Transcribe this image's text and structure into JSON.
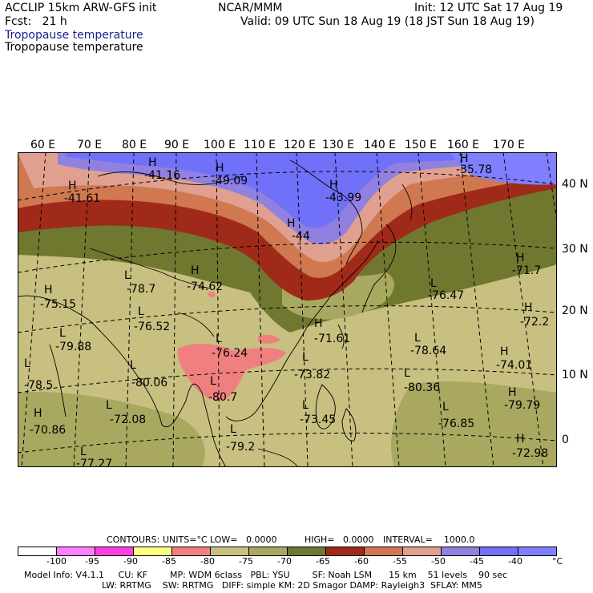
{
  "header": {
    "model": "ACCLIP 15km ARW-GFS init",
    "forecast": "Fcst:   21 h",
    "source": "NCAR/MMM",
    "init": "Init: 12 UTC Sat 17 Aug 19",
    "valid": "Valid: 09 UTC Sun 18 Aug 19 (18 JST Sun 18 Aug 19)",
    "field_title_1": "Tropopause temperature",
    "field_title_2": "Tropopause temperature"
  },
  "map": {
    "longitude_labels": [
      "60 E",
      "70 E",
      "80 E",
      "90 E",
      "100 E",
      "110 E",
      "120 E",
      "130 E",
      "140 E",
      "150 E",
      "160 E",
      "170 E"
    ],
    "latitude_labels": [
      "40 N",
      "30 N",
      "20 N",
      "10 N",
      "0"
    ],
    "markers": [
      {
        "type": "H",
        "value": "-41.61"
      },
      {
        "type": "H",
        "value": "-41.16"
      },
      {
        "type": "H",
        "value": "-49.09"
      },
      {
        "type": "H",
        "value": "-43.99"
      },
      {
        "type": "H",
        "value": "-44"
      },
      {
        "type": "H",
        "value": "-35.78"
      },
      {
        "type": "L",
        "value": "-78.7"
      },
      {
        "type": "H",
        "value": "-74.62"
      },
      {
        "type": "H",
        "value": "-75.15"
      },
      {
        "type": "L",
        "value": "-76.52"
      },
      {
        "type": "L",
        "value": "-79.88"
      },
      {
        "type": "L",
        "value": "-76.24"
      },
      {
        "type": "L",
        "value": "-80.06"
      },
      {
        "type": "L",
        "value": "-80.7"
      },
      {
        "type": "H",
        "value": "-71.61"
      },
      {
        "type": "L",
        "value": "-73.82"
      },
      {
        "type": "L",
        "value": "-76.47"
      },
      {
        "type": "L",
        "value": "-78.64"
      },
      {
        "type": "L",
        "value": "-80.36"
      },
      {
        "type": "H",
        "value": "-71.7"
      },
      {
        "type": "H",
        "value": "-72.2"
      },
      {
        "type": "H",
        "value": "-74.01"
      },
      {
        "type": "H",
        "value": "-79.79"
      },
      {
        "type": "L",
        "value": "-76.85"
      },
      {
        "type": "H",
        "value": "-72.98"
      },
      {
        "type": "L",
        "value": "-78.5"
      },
      {
        "type": "H",
        "value": "-70.86"
      },
      {
        "type": "L",
        "value": "-72.08"
      },
      {
        "type": "L",
        "value": "-79.2"
      },
      {
        "type": "L",
        "value": "-73.45"
      },
      {
        "type": "L",
        "value": "-77.27"
      }
    ]
  },
  "contours": {
    "label": "CONTOURS:",
    "units": "UNITS=°C",
    "low": "LOW=   0.0000",
    "high": "HIGH=   0.0000",
    "interval": "INTERVAL=    1000.0"
  },
  "colorbar": {
    "unit": "°C",
    "ticks": [
      "-100",
      "-95",
      "-90",
      "-85",
      "-80",
      "-75",
      "-70",
      "-65",
      "-60",
      "-55",
      "-50",
      "-45",
      "-40"
    ],
    "colors": [
      "#ffffff",
      "#ff80ff",
      "#ff40e0",
      "#ffff80",
      "#f08080",
      "#c8c080",
      "#a8a860",
      "#707830",
      "#a02a1a",
      "#d07850",
      "#e0a090",
      "#9080e0",
      "#7070f8",
      "#8080ff"
    ]
  },
  "footer": {
    "line1": "Model Info: V4.1.1     CU: KF        MP: WDM 6class   PBL: YSU        SF: Noah LSM      15 km    51 levels    90 sec",
    "line2": "LW: RRTMG    SW: RRTMG   DIFF: simple KM: 2D Smagor DAMP: Rayleigh3  SFLAY: MM5"
  }
}
